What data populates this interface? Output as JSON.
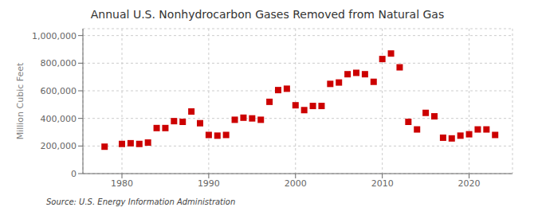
{
  "chart_data": {
    "type": "scatter",
    "title": "Annual U.S. Nonhydrocarbon Gases Removed from Natural Gas",
    "y_label": "Million Cubic Feet",
    "annotations": [
      "Source: U.S. Energy Information Administration"
    ],
    "color": "#cc0000",
    "marker": "square",
    "grid": true,
    "x": [
      1978,
      1980,
      1981,
      1982,
      1983,
      1984,
      1985,
      1986,
      1987,
      1988,
      1989,
      1990,
      1991,
      1992,
      1993,
      1994,
      1995,
      1996,
      1997,
      1998,
      1999,
      2000,
      2001,
      2002,
      2003,
      2004,
      2005,
      2006,
      2007,
      2008,
      2009,
      2010,
      2011,
      2012,
      2013,
      2014,
      2015,
      2016,
      2017,
      2018,
      2019,
      2020,
      2021,
      2022,
      2023
    ],
    "values": [
      195000,
      215000,
      220000,
      215000,
      225000,
      330000,
      330000,
      380000,
      375000,
      450000,
      365000,
      280000,
      275000,
      280000,
      390000,
      405000,
      400000,
      390000,
      520000,
      605000,
      615000,
      495000,
      460000,
      490000,
      490000,
      650000,
      660000,
      720000,
      730000,
      720000,
      665000,
      830000,
      870000,
      770000,
      375000,
      320000,
      440000,
      415000,
      260000,
      255000,
      275000,
      285000,
      320000,
      320000,
      280000
    ],
    "xlim": [
      1975.5,
      2025
    ],
    "ylim": [
      0,
      1050000
    ],
    "xticks": [
      1980,
      1990,
      2000,
      2010,
      2020
    ],
    "yticks": [
      0,
      {
        "value": 200000,
        "label": "200,000"
      },
      {
        "value": 400000,
        "label": "400,000"
      },
      {
        "value": 600000,
        "label": "600,000"
      },
      {
        "value": 800000,
        "label": "800,000"
      },
      {
        "value": 1000000,
        "label": "1,000,000"
      }
    ]
  }
}
